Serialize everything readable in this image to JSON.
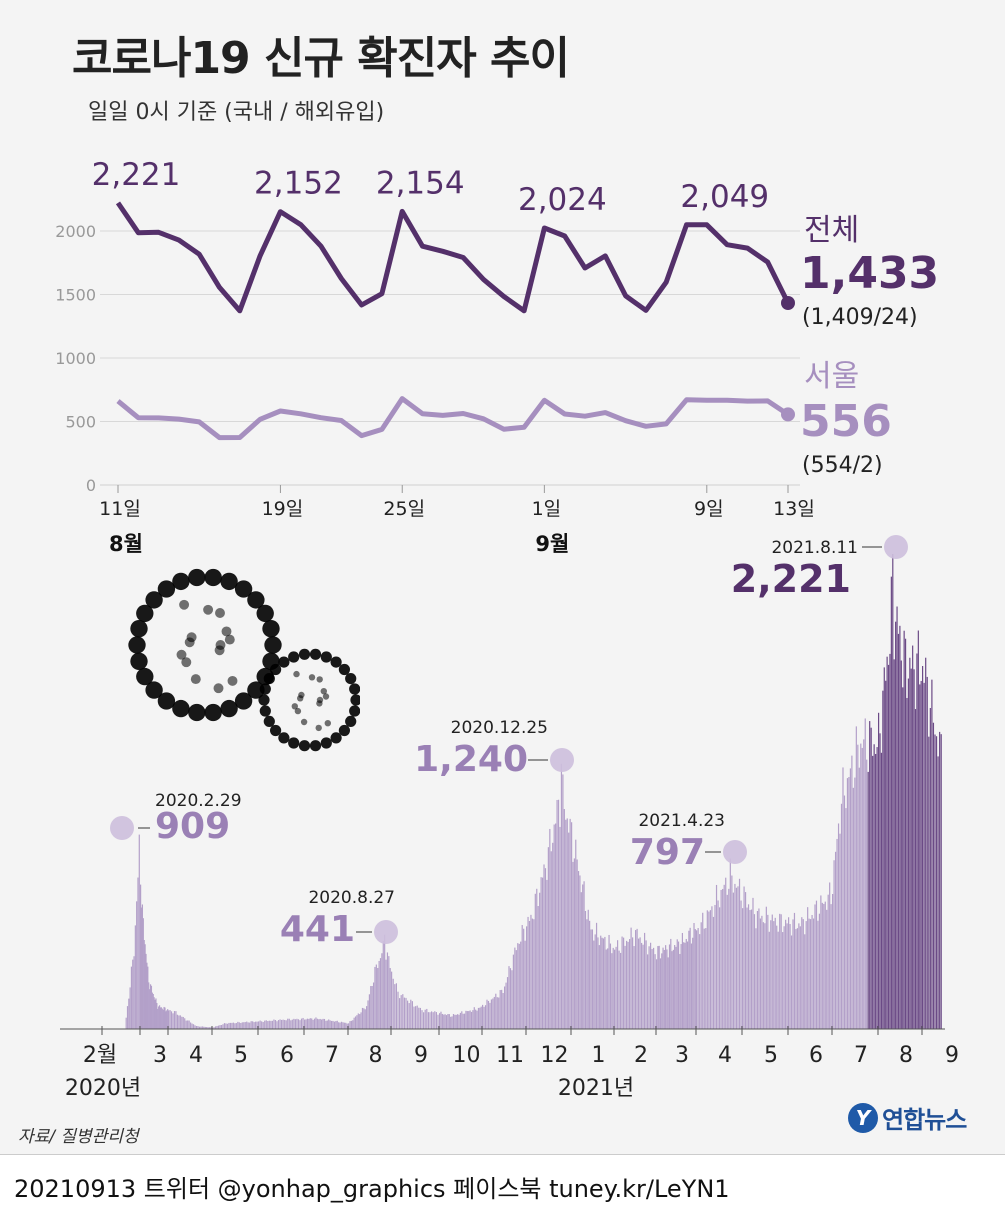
{
  "title": "코로나19 신규 확진자 추이",
  "subtitle": "일일 0시 기준 (국내 / 해외유입)",
  "colors": {
    "total": "#54306a",
    "seoul": "#a68fbf",
    "bars": "#b3a0c9",
    "bars_recent": "#6b4a86",
    "marker": "#cdbfdd"
  },
  "chart_data": [
    {
      "type": "line",
      "x": [
        "8.11",
        "8.12",
        "8.13",
        "8.14",
        "8.15",
        "8.16",
        "8.17",
        "8.18",
        "8.19",
        "8.20",
        "8.21",
        "8.22",
        "8.23",
        "8.24",
        "8.25",
        "8.26",
        "8.27",
        "8.28",
        "8.29",
        "8.30",
        "8.31",
        "9.1",
        "9.2",
        "9.3",
        "9.4",
        "9.5",
        "9.6",
        "9.7",
        "9.8",
        "9.9",
        "9.10",
        "9.11",
        "9.12",
        "9.13"
      ],
      "series": [
        {
          "name": "전체",
          "values": [
            2221,
            1987,
            1990,
            1928,
            1817,
            1556,
            1372,
            1805,
            2152,
            2050,
            1880,
            1626,
            1417,
            1506,
            2154,
            1880,
            1840,
            1791,
            1619,
            1485,
            1372,
            2024,
            1961,
            1709,
            1804,
            1490,
            1375,
            1597,
            2049,
            2049,
            1892,
            1865,
            1755,
            1433
          ],
          "label_value": "1,433",
          "label_detail": "(1,409/24)"
        },
        {
          "name": "서울",
          "values": [
            661,
            530,
            528,
            519,
            497,
            373,
            374,
            517,
            583,
            561,
            530,
            508,
            389,
            438,
            680,
            561,
            548,
            563,
            521,
            439,
            454,
            667,
            559,
            542,
            570,
            506,
            462,
            481,
            671,
            667,
            668,
            661,
            662,
            556
          ],
          "label_value": "556",
          "label_detail": "(554/2)"
        }
      ],
      "peak_labels": [
        "2,221",
        "2,152",
        "2,154",
        "2,024",
        "2,049"
      ],
      "y_ticks": [
        "0",
        "500",
        "1000",
        "1500",
        "2000"
      ],
      "ylim": [
        0,
        2300
      ],
      "x_tick_labels": [
        "11일",
        "19일",
        "25일",
        "1일",
        "9일",
        "13일"
      ],
      "month_labels": [
        "8월",
        "9월"
      ],
      "grid": true
    },
    {
      "type": "bar",
      "x_range": [
        "2020.1.20",
        "2021.9.13"
      ],
      "month_labels": [
        "2월",
        "3",
        "4",
        "5",
        "6",
        "7",
        "8",
        "9",
        "10",
        "11",
        "12",
        "1",
        "2",
        "3",
        "4",
        "5",
        "6",
        "7",
        "8",
        "9"
      ],
      "year_labels": [
        "2020년",
        "2021년"
      ],
      "annotations": [
        {
          "date": "2020.2.29",
          "value": "909"
        },
        {
          "date": "2020.8.27",
          "value": "441"
        },
        {
          "date": "2020.12.25",
          "value": "1,240"
        },
        {
          "date": "2021.4.23",
          "value": "797"
        },
        {
          "date": "2021.8.11",
          "value": "2,221"
        }
      ],
      "ylim": [
        0,
        2221
      ]
    }
  ],
  "source": "자료/ 질병관리청",
  "logo": {
    "mark": "Y",
    "text": "연합뉴스"
  },
  "footer": "20210913 트위터 @yonhap_graphics  페이스북 tuney.kr/LeYN1"
}
